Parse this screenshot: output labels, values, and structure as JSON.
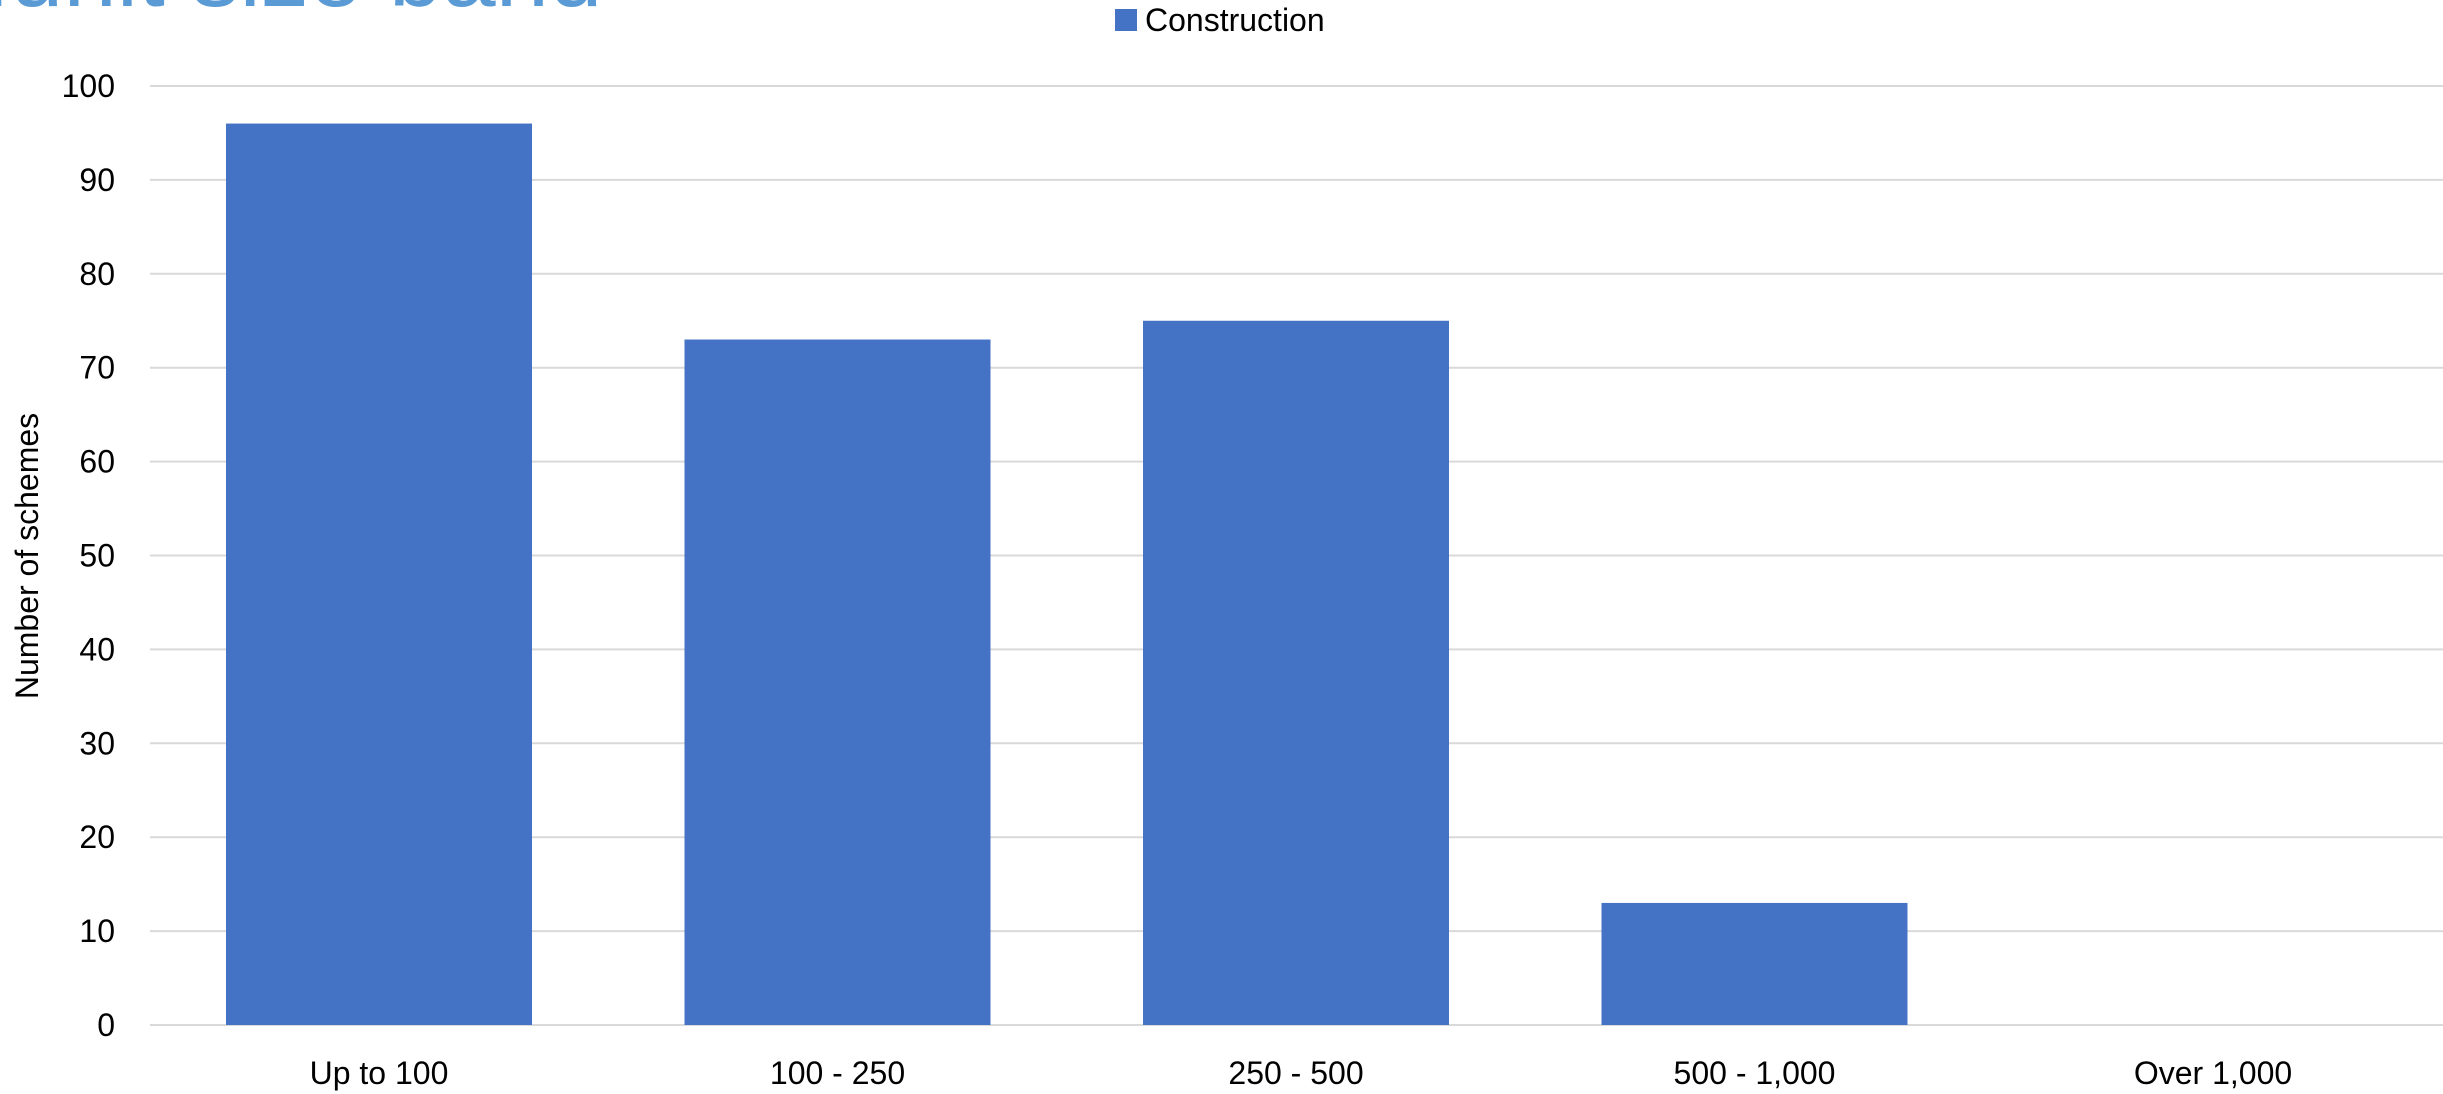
{
  "colors": {
    "bar": "#4472C4",
    "title": "#5B9BD5",
    "grid": "#D9D9D9",
    "text": "#000000"
  },
  "chart_data": {
    "type": "bar",
    "title": "...unit size band",
    "categories": [
      "Up to 100",
      "100 - 250",
      "250 - 500",
      "500 - 1,000",
      "Over 1,000"
    ],
    "series": [
      {
        "name": "Construction",
        "values": [
          96,
          73,
          75,
          13,
          0
        ]
      }
    ],
    "xlabel": "",
    "ylabel": "Number of schemes",
    "ylim": [
      0,
      100
    ],
    "yticks": [
      "0",
      "10",
      "20",
      "30",
      "40",
      "50",
      "60",
      "70",
      "80",
      "90",
      "100"
    ],
    "grid": true,
    "legend_position": "top-center"
  }
}
